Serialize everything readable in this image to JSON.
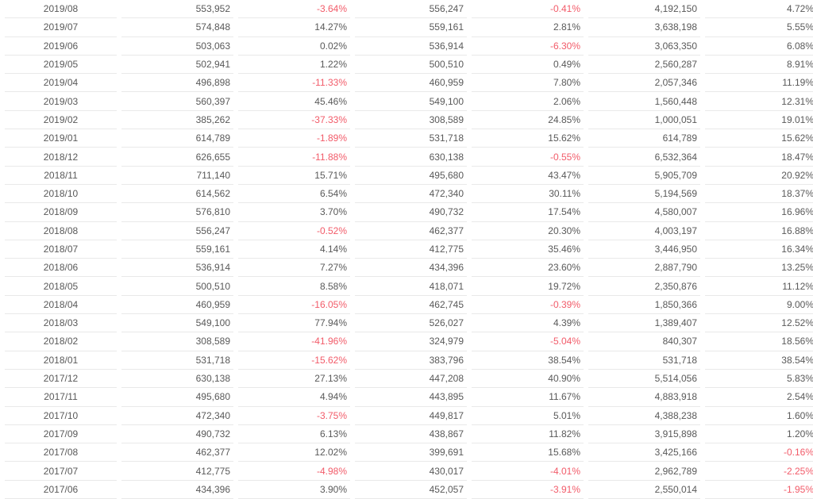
{
  "table": {
    "description": "monthly-values-table",
    "colors": {
      "text": "#595959",
      "negative": "#f25b69",
      "divider": "#e9e9e9",
      "background": "#ffffff"
    },
    "columns": [
      "month",
      "value-a",
      "change-a-pct",
      "value-b",
      "change-b-pct",
      "cumulative-value",
      "cumulative-change-pct"
    ],
    "rows": [
      [
        "2019/08",
        "553,952",
        "-3.64%",
        "556,247",
        "-0.41%",
        "4,192,150",
        "4.72%"
      ],
      [
        "2019/07",
        "574,848",
        "14.27%",
        "559,161",
        "2.81%",
        "3,638,198",
        "5.55%"
      ],
      [
        "2019/06",
        "503,063",
        "0.02%",
        "536,914",
        "-6.30%",
        "3,063,350",
        "6.08%"
      ],
      [
        "2019/05",
        "502,941",
        "1.22%",
        "500,510",
        "0.49%",
        "2,560,287",
        "8.91%"
      ],
      [
        "2019/04",
        "496,898",
        "-11.33%",
        "460,959",
        "7.80%",
        "2,057,346",
        "11.19%"
      ],
      [
        "2019/03",
        "560,397",
        "45.46%",
        "549,100",
        "2.06%",
        "1,560,448",
        "12.31%"
      ],
      [
        "2019/02",
        "385,262",
        "-37.33%",
        "308,589",
        "24.85%",
        "1,000,051",
        "19.01%"
      ],
      [
        "2019/01",
        "614,789",
        "-1.89%",
        "531,718",
        "15.62%",
        "614,789",
        "15.62%"
      ],
      [
        "2018/12",
        "626,655",
        "-11.88%",
        "630,138",
        "-0.55%",
        "6,532,364",
        "18.47%"
      ],
      [
        "2018/11",
        "711,140",
        "15.71%",
        "495,680",
        "43.47%",
        "5,905,709",
        "20.92%"
      ],
      [
        "2018/10",
        "614,562",
        "6.54%",
        "472,340",
        "30.11%",
        "5,194,569",
        "18.37%"
      ],
      [
        "2018/09",
        "576,810",
        "3.70%",
        "490,732",
        "17.54%",
        "4,580,007",
        "16.96%"
      ],
      [
        "2018/08",
        "556,247",
        "-0.52%",
        "462,377",
        "20.30%",
        "4,003,197",
        "16.88%"
      ],
      [
        "2018/07",
        "559,161",
        "4.14%",
        "412,775",
        "35.46%",
        "3,446,950",
        "16.34%"
      ],
      [
        "2018/06",
        "536,914",
        "7.27%",
        "434,396",
        "23.60%",
        "2,887,790",
        "13.25%"
      ],
      [
        "2018/05",
        "500,510",
        "8.58%",
        "418,071",
        "19.72%",
        "2,350,876",
        "11.12%"
      ],
      [
        "2018/04",
        "460,959",
        "-16.05%",
        "462,745",
        "-0.39%",
        "1,850,366",
        "9.00%"
      ],
      [
        "2018/03",
        "549,100",
        "77.94%",
        "526,027",
        "4.39%",
        "1,389,407",
        "12.52%"
      ],
      [
        "2018/02",
        "308,589",
        "-41.96%",
        "324,979",
        "-5.04%",
        "840,307",
        "18.56%"
      ],
      [
        "2018/01",
        "531,718",
        "-15.62%",
        "383,796",
        "38.54%",
        "531,718",
        "38.54%"
      ],
      [
        "2017/12",
        "630,138",
        "27.13%",
        "447,208",
        "40.90%",
        "5,514,056",
        "5.83%"
      ],
      [
        "2017/11",
        "495,680",
        "4.94%",
        "443,895",
        "11.67%",
        "4,883,918",
        "2.54%"
      ],
      [
        "2017/10",
        "472,340",
        "-3.75%",
        "449,817",
        "5.01%",
        "4,388,238",
        "1.60%"
      ],
      [
        "2017/09",
        "490,732",
        "6.13%",
        "438,867",
        "11.82%",
        "3,915,898",
        "1.20%"
      ],
      [
        "2017/08",
        "462,377",
        "12.02%",
        "399,691",
        "15.68%",
        "3,425,166",
        "-0.16%"
      ],
      [
        "2017/07",
        "412,775",
        "-4.98%",
        "430,017",
        "-4.01%",
        "2,962,789",
        "-2.25%"
      ],
      [
        "2017/06",
        "434,396",
        "3.90%",
        "452,057",
        "-3.91%",
        "2,550,014",
        "-1.95%"
      ]
    ]
  }
}
